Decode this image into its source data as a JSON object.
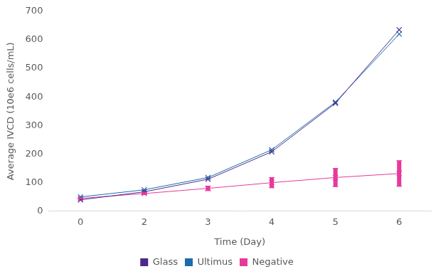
{
  "chart_data": {
    "type": "line",
    "x_label": "Time (Day)",
    "y_label": "Average IVCD (10e6 cells/mL)",
    "categories": [
      "0",
      "2",
      "3",
      "4",
      "5",
      "6"
    ],
    "series": [
      {
        "name": "Glass",
        "color": "#4b2a8c",
        "values": [
          40,
          68,
          112,
          208,
          378,
          635
        ],
        "marker": "x"
      },
      {
        "name": "Ultimus",
        "color": "#1a6bad",
        "values": [
          50,
          75,
          118,
          215,
          382,
          620
        ],
        "marker": "x"
      },
      {
        "name": "Negative",
        "color": "#e6399b",
        "values": [
          45,
          62,
          80,
          100,
          118,
          132
        ],
        "marker": "x",
        "error": [
          2,
          4,
          8,
          18,
          32,
          45
        ]
      }
    ],
    "ylim": [
      0,
      700
    ],
    "yticks": [
      0,
      100,
      200,
      300,
      400,
      500,
      600,
      700
    ],
    "grid": false,
    "legend": "bottom"
  }
}
